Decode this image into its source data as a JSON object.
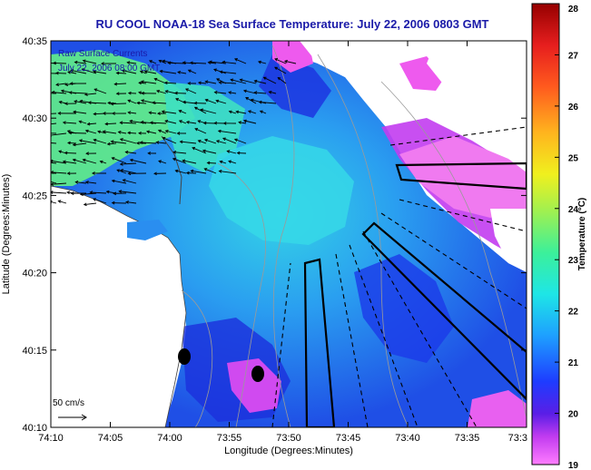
{
  "title": "RU COOL  NOAA-18  Sea Surface Temperature:  July 22, 2006 0803 GMT",
  "annotation_line1": "Raw Surface Currents",
  "annotation_line2": "July 22, 2006 08:00 GMT",
  "scale_label": "50 cm/s",
  "xlabel": "Longitude (Degrees:Minutes)",
  "ylabel": "Latitude (Degrees:Minutes)",
  "x_ticks": [
    "74:10",
    "74:05",
    "74:00",
    "73:55",
    "73:50",
    "73:45",
    "73:40",
    "73:35",
    "73:3"
  ],
  "y_ticks": [
    "40:35",
    "40:30",
    "40:25",
    "40:20",
    "40:15",
    "40:10"
  ],
  "colorbar": {
    "label": "Temperature (°C)",
    "min": 19,
    "max": 28,
    "ticks": [
      "28",
      "27",
      "26",
      "25",
      "24",
      "23",
      "22",
      "21",
      "20",
      "19"
    ]
  },
  "colors": {
    "title": "#1a1aa8",
    "land": "#ffffff",
    "frame": "#000000"
  }
}
